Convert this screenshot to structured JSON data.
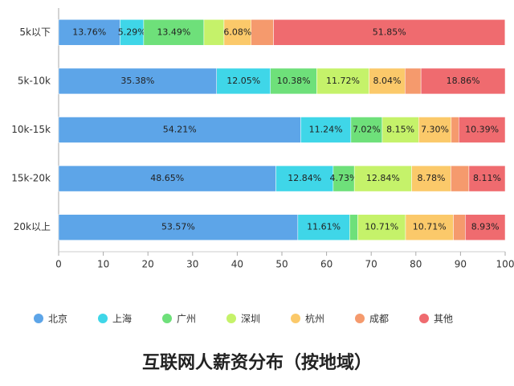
{
  "chart_data": {
    "type": "stacked-bar-horizontal",
    "title": "互联网人薪资分布（按地域）",
    "categories": [
      "5k以下",
      "5k-10k",
      "10k-15k",
      "15k-20k",
      "20k以上"
    ],
    "series": [
      {
        "name": "北京",
        "color": "#5da5e8",
        "values": [
          13.76,
          35.38,
          54.21,
          48.65,
          53.57
        ],
        "value_labels": [
          "13.76%",
          "35.38%",
          "54.21%",
          "48.65%",
          "53.57%"
        ]
      },
      {
        "name": "上海",
        "color": "#3fd6e8",
        "values": [
          5.29,
          12.05,
          11.24,
          12.84,
          11.61
        ],
        "value_labels": [
          "5.29%",
          "12.05%",
          "11.24%",
          "12.84%",
          "11.61%"
        ]
      },
      {
        "name": "广州",
        "color": "#6ee07a",
        "values": [
          13.49,
          10.38,
          7.02,
          4.73,
          1.8
        ],
        "value_labels": [
          "13.49%",
          "10.38%",
          "7.02%",
          "4.73%",
          null
        ]
      },
      {
        "name": "深圳",
        "color": "#c5f26a",
        "values": [
          4.5,
          11.72,
          8.15,
          12.84,
          10.71
        ],
        "value_labels": [
          null,
          "11.72%",
          "8.15%",
          "12.84%",
          "10.71%"
        ]
      },
      {
        "name": "杭州",
        "color": "#fbc96a",
        "values": [
          6.08,
          8.04,
          7.3,
          8.78,
          10.71
        ],
        "value_labels": [
          "6.08%",
          "8.04%",
          "7.30%",
          "8.78%",
          "10.71%"
        ]
      },
      {
        "name": "成都",
        "color": "#f59a6d",
        "values": [
          5.0,
          3.57,
          1.69,
          4.05,
          2.67
        ],
        "value_labels": [
          null,
          null,
          null,
          null,
          null
        ]
      },
      {
        "name": "其他",
        "color": "#ef6b6f",
        "values": [
          51.85,
          18.86,
          10.39,
          8.11,
          8.93
        ],
        "value_labels": [
          "51.85%",
          "18.86%",
          "10.39%",
          "8.11%",
          "8.93%"
        ]
      }
    ],
    "xlim": [
      0,
      100
    ],
    "xticks": [
      0,
      10,
      20,
      30,
      40,
      50,
      60,
      70,
      80,
      90,
      100
    ],
    "grid": false
  }
}
